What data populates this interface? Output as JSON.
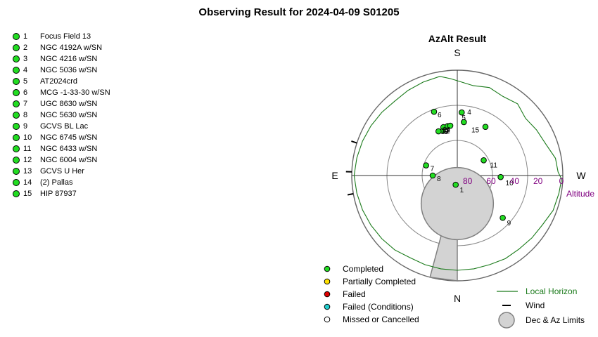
{
  "page_title": "Observing Result for 2024-04-09 S01205",
  "targets": [
    {
      "num": "1",
      "name": "Focus Field 13",
      "status": "completed",
      "alt": 82,
      "az": 190
    },
    {
      "num": "2",
      "name": "NGC 4192A w/SN",
      "status": "completed",
      "alt": 50,
      "az": 342
    },
    {
      "num": "3",
      "name": "NGC 4216 w/SN",
      "status": "completed",
      "alt": 49,
      "az": 337
    },
    {
      "num": "4",
      "name": "NGC 5036 w/SN",
      "status": "completed",
      "alt": 36,
      "az": 4
    },
    {
      "num": "5",
      "name": "AT2024crd",
      "status": "completed",
      "alt": 44,
      "az": 7
    },
    {
      "num": "6",
      "name": "MCG -1-33-30 w/SN",
      "status": "completed",
      "alt": 32,
      "az": 340
    },
    {
      "num": "7",
      "name": "UGC 8630 w/SN",
      "status": "completed",
      "alt": 62,
      "az": 288
    },
    {
      "num": "8",
      "name": "NGC 5630 w/SN",
      "status": "completed",
      "alt": 69,
      "az": 270
    },
    {
      "num": "9",
      "name": "GCVS BL Lac",
      "status": "completed",
      "alt": 37,
      "az": 133
    },
    {
      "num": "10",
      "name": "NGC 6745 w/SN",
      "status": "completed",
      "alt": 53,
      "az": 92
    },
    {
      "num": "11",
      "name": "NGC 6433 w/SN",
      "status": "completed",
      "alt": 64,
      "az": 60
    },
    {
      "num": "12",
      "name": "NGC 6004 w/SN",
      "status": "completed",
      "alt": 47,
      "az": 344
    },
    {
      "num": "13",
      "name": "GCVS U Her",
      "status": "completed",
      "alt": 47,
      "az": 349
    },
    {
      "num": "14",
      "name": "(2) Pallas",
      "status": "completed",
      "alt": 47,
      "az": 352
    },
    {
      "num": "15",
      "name": "HIP 87937",
      "status": "completed",
      "alt": 42,
      "az": 30
    }
  ],
  "chart_title": "AzAlt Result",
  "compass": {
    "north": "N",
    "south": "S",
    "east": "E",
    "west": "W"
  },
  "altitude_axis_label": "Altitude",
  "altitude_ticks": [
    0,
    20,
    40,
    60,
    80
  ],
  "altitude_rings": [
    0,
    30,
    60
  ],
  "colors": {
    "completed": "#22dd22",
    "partial": "#ffe000",
    "failed": "#dd0000",
    "failed_conditions": "#22cccc",
    "missed": "#ffffff",
    "horizon": "#1a7a1a",
    "tick_labels": "#800080",
    "limits_fill": "#d3d3d3",
    "limits_stroke": "#808080"
  },
  "legend": {
    "status": [
      {
        "label": "Completed",
        "color_key": "completed"
      },
      {
        "label": "Partially Completed",
        "color_key": "partial"
      },
      {
        "label": "Failed",
        "color_key": "failed"
      },
      {
        "label": "Failed (Conditions)",
        "color_key": "failed_conditions"
      },
      {
        "label": "Missed or Cancelled",
        "color_key": "missed"
      }
    ],
    "extras": [
      {
        "label": "Local Horizon",
        "symbol": "line"
      },
      {
        "label": "Wind",
        "symbol": "dash"
      },
      {
        "label": "Dec & Az Limits",
        "symbol": "circle"
      }
    ]
  },
  "dec_limit": {
    "center_alt": 66,
    "center_az": 180,
    "radius_deg": 14
  },
  "az_limit": {
    "az_start": 180,
    "az_end": 195,
    "alt_start": 46,
    "alt_end": 0
  },
  "wind_marks_az": [
    260,
    272,
    288
  ],
  "chart_data": {
    "type": "scatter",
    "title": "AzAlt Result",
    "x_axis": "azimuth (degrees, S at top, N at bottom, E left, W right)",
    "y_axis": "altitude (degrees, 90 at center, 0 at rim)",
    "ylabel": "Altitude",
    "alt_range": [
      0,
      90
    ],
    "points": [
      {
        "label": "1",
        "az": 190,
        "alt": 82
      },
      {
        "label": "2",
        "az": 342,
        "alt": 50
      },
      {
        "label": "3",
        "az": 337,
        "alt": 49
      },
      {
        "label": "4",
        "az": 4,
        "alt": 36
      },
      {
        "label": "5",
        "az": 7,
        "alt": 44
      },
      {
        "label": "6",
        "az": 340,
        "alt": 32
      },
      {
        "label": "7",
        "az": 288,
        "alt": 62
      },
      {
        "label": "8",
        "az": 270,
        "alt": 69
      },
      {
        "label": "9",
        "az": 133,
        "alt": 37
      },
      {
        "label": "10",
        "az": 92,
        "alt": 53
      },
      {
        "label": "11",
        "az": 60,
        "alt": 64
      },
      {
        "label": "12",
        "az": 344,
        "alt": 47
      },
      {
        "label": "13",
        "az": 349,
        "alt": 47
      },
      {
        "label": "14",
        "az": 352,
        "alt": 47
      },
      {
        "label": "15",
        "az": 30,
        "alt": 42
      }
    ],
    "local_horizon": [
      {
        "az": 0,
        "alt": 9
      },
      {
        "az": 10,
        "alt": 12
      },
      {
        "az": 20,
        "alt": 10
      },
      {
        "az": 30,
        "alt": 12
      },
      {
        "az": 40,
        "alt": 10
      },
      {
        "az": 50,
        "alt": 14
      },
      {
        "az": 60,
        "alt": 12
      },
      {
        "az": 70,
        "alt": 10
      },
      {
        "az": 80,
        "alt": 5
      },
      {
        "az": 88,
        "alt": 4
      },
      {
        "az": 92,
        "alt": 1
      },
      {
        "az": 100,
        "alt": 2
      },
      {
        "az": 110,
        "alt": 3
      },
      {
        "az": 120,
        "alt": 6
      },
      {
        "az": 130,
        "alt": 7
      },
      {
        "az": 140,
        "alt": 8
      },
      {
        "az": 150,
        "alt": 8
      },
      {
        "az": 160,
        "alt": 9
      },
      {
        "az": 170,
        "alt": 9
      },
      {
        "az": 180,
        "alt": 9
      },
      {
        "az": 190,
        "alt": 9
      },
      {
        "az": 200,
        "alt": 9
      },
      {
        "az": 210,
        "alt": 9
      },
      {
        "az": 220,
        "alt": 7
      },
      {
        "az": 230,
        "alt": 6
      },
      {
        "az": 240,
        "alt": 5
      },
      {
        "az": 250,
        "alt": 4
      },
      {
        "az": 260,
        "alt": 3
      },
      {
        "az": 270,
        "alt": 2
      },
      {
        "az": 280,
        "alt": 3
      },
      {
        "az": 290,
        "alt": 4
      },
      {
        "az": 300,
        "alt": 5
      },
      {
        "az": 310,
        "alt": 6
      },
      {
        "az": 320,
        "alt": 7
      },
      {
        "az": 330,
        "alt": 6
      },
      {
        "az": 340,
        "alt": 5
      },
      {
        "az": 350,
        "alt": 4
      },
      {
        "az": 356,
        "alt": 7
      },
      {
        "az": 360,
        "alt": 9
      }
    ]
  }
}
